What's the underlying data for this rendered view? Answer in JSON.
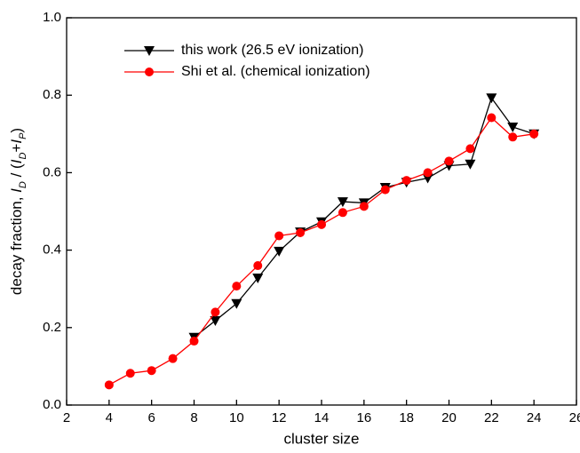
{
  "chart_data": {
    "type": "line",
    "x_label": "cluster size",
    "y_label_parts": [
      "decay fraction, ",
      "I",
      "D",
      " / (",
      "I",
      "D",
      "+",
      "I",
      "P",
      ")"
    ],
    "xlim": [
      2,
      26
    ],
    "xticks": [
      2,
      4,
      6,
      8,
      10,
      12,
      14,
      16,
      18,
      20,
      22,
      24,
      26
    ],
    "ylim": [
      0,
      1
    ],
    "yticks": [
      {
        "value": 0,
        "label": "0.0"
      },
      {
        "value": 0.2,
        "label": "0.2"
      },
      {
        "value": 0.4,
        "label": "0.4"
      },
      {
        "value": 0.6,
        "label": "0.6"
      },
      {
        "value": 0.8,
        "label": "0.8"
      },
      {
        "value": 1,
        "label": "1.0"
      }
    ],
    "legend": "upper left",
    "series": [
      {
        "name": "this work (26.5 eV ionization)",
        "color": "#000000",
        "marker": "triangle-down",
        "x": [
          8,
          9,
          10,
          11,
          12,
          13,
          14,
          15,
          16,
          17,
          18,
          19,
          20,
          21,
          22,
          23,
          24
        ],
        "values": [
          0.175,
          0.218,
          0.262,
          0.328,
          0.397,
          0.447,
          0.473,
          0.525,
          0.522,
          0.562,
          0.575,
          0.586,
          0.618,
          0.622,
          0.793,
          0.718,
          0.7
        ]
      },
      {
        "name": "Shi et al. (chemical ionization)",
        "color": "#ff0000",
        "marker": "circle",
        "x": [
          4,
          5,
          6,
          7,
          8,
          9,
          10,
          11,
          12,
          13,
          14,
          15,
          16,
          17,
          18,
          19,
          20,
          21,
          22,
          23,
          24
        ],
        "values": [
          0.052,
          0.082,
          0.089,
          0.12,
          0.165,
          0.24,
          0.307,
          0.36,
          0.437,
          0.445,
          0.466,
          0.497,
          0.513,
          0.556,
          0.58,
          0.6,
          0.63,
          0.662,
          0.742,
          0.692,
          0.7
        ]
      }
    ]
  }
}
